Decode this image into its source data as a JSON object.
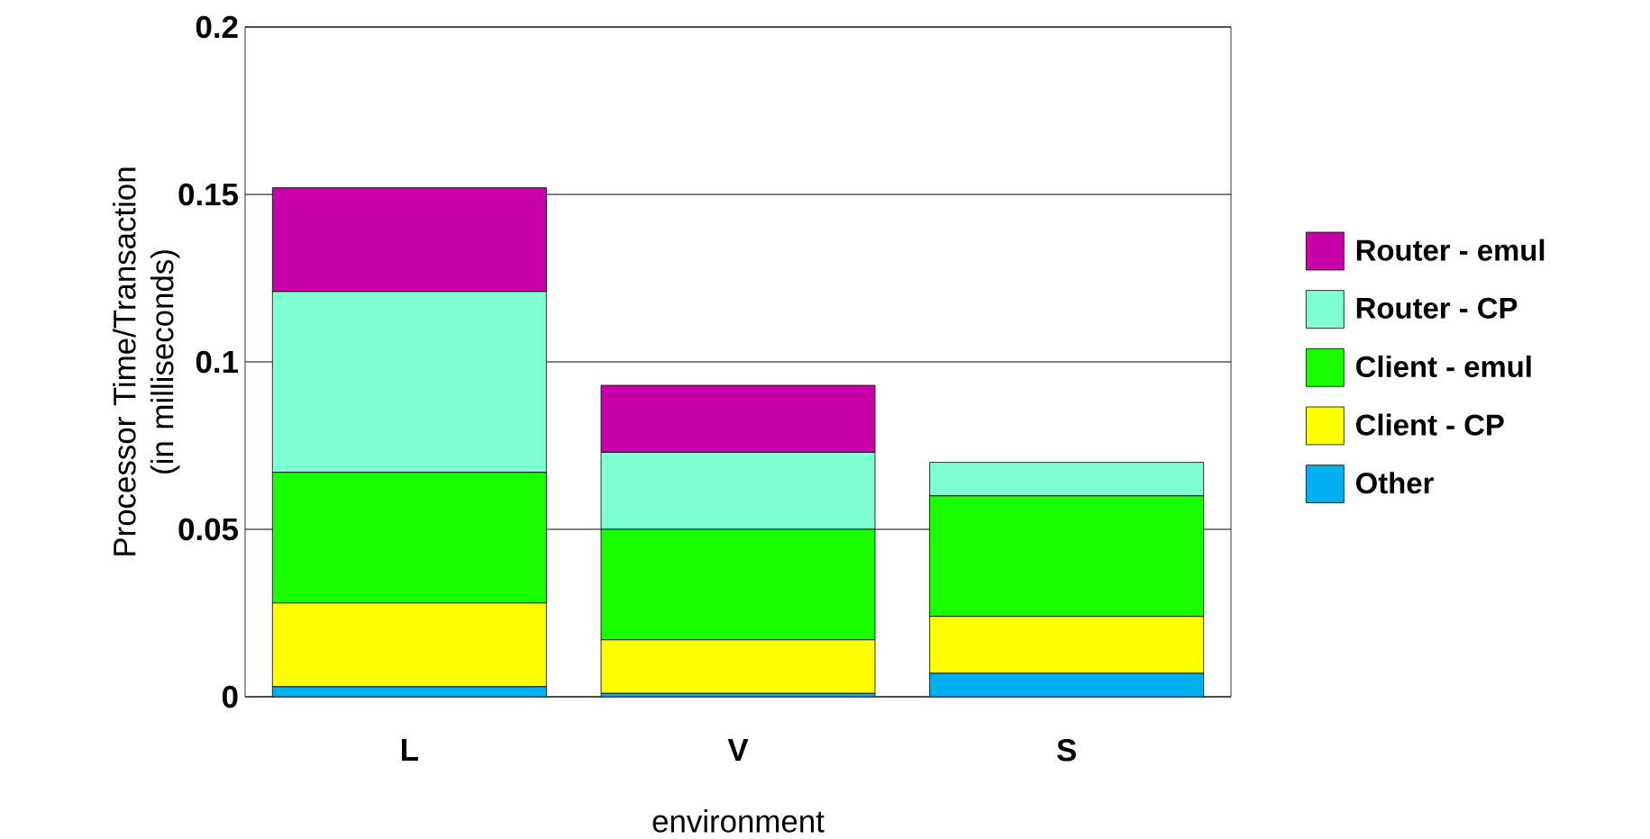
{
  "chart_data": {
    "type": "bar",
    "stacked": true,
    "xlabel": "environment",
    "ylabel": "Processor Time/Transaction (in milliseconds)",
    "categories": [
      "L",
      "V",
      "S"
    ],
    "series": [
      {
        "name": "Other",
        "color": "#00b0f0",
        "values": [
          0.003,
          0.001,
          0.007
        ]
      },
      {
        "name": "Client - CP",
        "color": "#ffff00",
        "values": [
          0.025,
          0.016,
          0.017
        ]
      },
      {
        "name": "Client - emul",
        "color": "#1aff00",
        "values": [
          0.039,
          0.033,
          0.036
        ]
      },
      {
        "name": "Router - CP",
        "color": "#7fffd4",
        "values": [
          0.054,
          0.023,
          0.01
        ]
      },
      {
        "name": "Router - emul",
        "color": "#c800aa",
        "values": [
          0.031,
          0.02,
          0
        ]
      }
    ],
    "ylim": [
      0,
      0.2
    ],
    "yticks": [
      0,
      0.05,
      0.1,
      0.15,
      0.2
    ],
    "grid": "y",
    "legend": "right"
  }
}
